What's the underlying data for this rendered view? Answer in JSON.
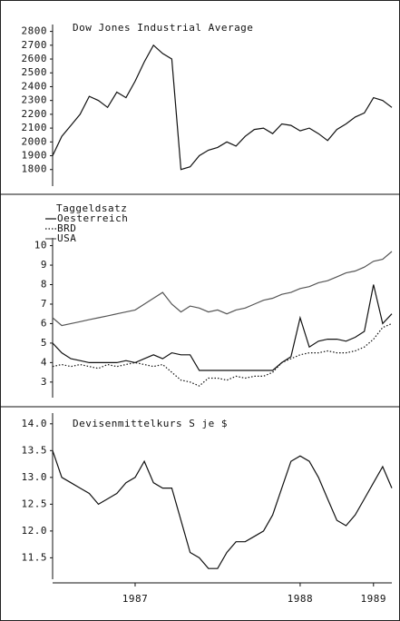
{
  "chart_data": [
    {
      "type": "line",
      "title": "Dow Jones Industrial Average",
      "ylim": [
        1680,
        2850
      ],
      "yticks": [
        1800,
        1900,
        2000,
        2100,
        2200,
        2300,
        2400,
        2500,
        2600,
        2700,
        2800
      ],
      "series": [
        {
          "color": "#111111",
          "dash": "none",
          "values": [
            1900,
            2040,
            2120,
            2200,
            2330,
            2300,
            2250,
            2360,
            2320,
            2440,
            2580,
            2700,
            2640,
            2600,
            1800,
            1820,
            1900,
            1940,
            1960,
            2000,
            1970,
            2040,
            2090,
            2100,
            2060,
            2130,
            2120,
            2080,
            2100,
            2060,
            2010,
            2090,
            2130,
            2180,
            2210,
            2320,
            2300,
            2250
          ]
        }
      ]
    },
    {
      "type": "line",
      "title": "Taggeldsatz",
      "ylim": [
        2.2,
        10.4
      ],
      "yticks": [
        3,
        4,
        5,
        6,
        7,
        8,
        9,
        10
      ],
      "series": [
        {
          "name": "Oesterreich",
          "color": "#111111",
          "dash": "none",
          "values": [
            5.0,
            4.5,
            4.2,
            4.1,
            4.0,
            4.0,
            4.0,
            4.0,
            4.1,
            4.0,
            4.2,
            4.4,
            4.2,
            4.5,
            4.4,
            4.4,
            3.6,
            3.6,
            3.6,
            3.6,
            3.6,
            3.6,
            3.6,
            3.6,
            3.6,
            4.0,
            4.3,
            6.3,
            4.8,
            5.1,
            5.2,
            5.2,
            5.1,
            5.3,
            5.6,
            8.0,
            6.0,
            6.5
          ]
        },
        {
          "name": "BRD",
          "color": "#111111",
          "dash": "1.5 2",
          "values": [
            3.8,
            3.9,
            3.8,
            3.9,
            3.8,
            3.7,
            3.9,
            3.8,
            3.9,
            4.0,
            3.9,
            3.8,
            3.9,
            3.5,
            3.1,
            3.0,
            2.8,
            3.2,
            3.2,
            3.1,
            3.3,
            3.2,
            3.3,
            3.3,
            3.5,
            4.0,
            4.2,
            4.4,
            4.5,
            4.5,
            4.6,
            4.5,
            4.5,
            4.6,
            4.8,
            5.2,
            5.8,
            6.0
          ]
        },
        {
          "name": "USA",
          "color": "#555555",
          "dash": "none",
          "values": [
            6.3,
            5.9,
            6.0,
            6.1,
            6.2,
            6.3,
            6.4,
            6.5,
            6.6,
            6.7,
            7.0,
            7.3,
            7.6,
            7.0,
            6.6,
            6.9,
            6.8,
            6.6,
            6.7,
            6.5,
            6.7,
            6.8,
            7.0,
            7.2,
            7.3,
            7.5,
            7.6,
            7.8,
            7.9,
            8.1,
            8.2,
            8.4,
            8.6,
            8.7,
            8.9,
            9.2,
            9.3,
            9.7
          ]
        }
      ]
    },
    {
      "type": "line",
      "title": "Devisenmittelkurs S je $",
      "ylim": [
        11.1,
        14.2
      ],
      "yticks": [
        {
          "value": 11.5,
          "label": "11.5"
        },
        {
          "value": 12,
          "label": "12.0"
        },
        {
          "value": 12.5,
          "label": "12.5"
        },
        {
          "value": 13,
          "label": "13.0"
        },
        {
          "value": 13.5,
          "label": "13.5"
        },
        {
          "value": 14,
          "label": "14.0"
        }
      ],
      "categories": [
        null,
        null,
        null,
        null,
        null,
        null,
        null,
        null,
        null,
        "1987",
        null,
        null,
        null,
        null,
        null,
        null,
        null,
        null,
        null,
        null,
        null,
        null,
        null,
        null,
        null,
        null,
        null,
        "1988",
        null,
        null,
        null,
        null,
        null,
        null,
        null,
        "1989",
        null,
        null
      ],
      "series": [
        {
          "color": "#111111",
          "dash": "none",
          "values": [
            13.5,
            13.0,
            12.9,
            12.8,
            12.7,
            12.5,
            12.6,
            12.7,
            12.9,
            13.0,
            13.3,
            12.9,
            12.8,
            12.8,
            12.2,
            11.6,
            11.5,
            11.3,
            11.3,
            11.6,
            11.8,
            11.8,
            11.9,
            12.0,
            12.3,
            12.8,
            13.3,
            13.4,
            13.3,
            13.0,
            12.6,
            12.2,
            12.1,
            12.3,
            12.6,
            12.9,
            13.2,
            12.8
          ]
        }
      ]
    }
  ]
}
